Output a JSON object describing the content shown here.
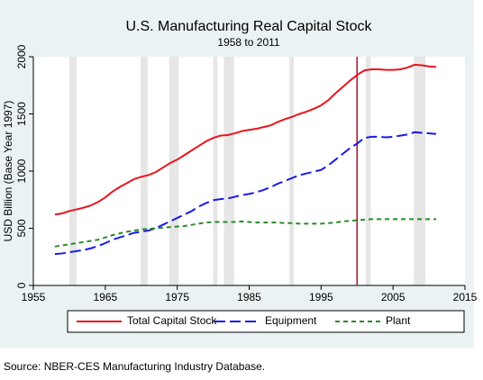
{
  "chart_data": {
    "type": "line",
    "title": "U.S. Manufacturing Real Capital Stock",
    "subtitle": "1958 to 2011",
    "y_label": "USD Billion (Base Year 1997)",
    "source": "Source: NBER-CES Manufacturing Industry Database.",
    "x": [
      1958,
      1959,
      1960,
      1961,
      1962,
      1963,
      1964,
      1965,
      1966,
      1967,
      1968,
      1969,
      1970,
      1971,
      1972,
      1973,
      1974,
      1975,
      1976,
      1977,
      1978,
      1979,
      1980,
      1981,
      1982,
      1983,
      1984,
      1985,
      1986,
      1987,
      1988,
      1989,
      1990,
      1991,
      1992,
      1993,
      1994,
      1995,
      1996,
      1997,
      1998,
      1999,
      2000,
      2001,
      2002,
      2003,
      2004,
      2005,
      2006,
      2007,
      2008,
      2009,
      2010,
      2011
    ],
    "series": [
      {
        "name": "Total Capital Stock",
        "color": "#e8141e",
        "dash": "none",
        "values": [
          620,
          630,
          650,
          665,
          680,
          700,
          730,
          770,
          820,
          860,
          895,
          930,
          950,
          965,
          990,
          1030,
          1070,
          1100,
          1140,
          1180,
          1220,
          1260,
          1290,
          1310,
          1315,
          1330,
          1350,
          1360,
          1370,
          1385,
          1400,
          1430,
          1455,
          1475,
          1500,
          1520,
          1545,
          1575,
          1620,
          1680,
          1735,
          1790,
          1840,
          1880,
          1890,
          1890,
          1885,
          1885,
          1890,
          1905,
          1930,
          1925,
          1915,
          1910
        ]
      },
      {
        "name": "Equipment",
        "color": "#1a1ae6",
        "dash": "12,5",
        "values": [
          275,
          280,
          290,
          300,
          310,
          325,
          345,
          370,
          400,
          420,
          440,
          460,
          470,
          480,
          500,
          530,
          560,
          590,
          620,
          650,
          690,
          720,
          745,
          755,
          760,
          775,
          790,
          800,
          815,
          835,
          860,
          890,
          915,
          940,
          965,
          980,
          995,
          1010,
          1050,
          1100,
          1150,
          1200,
          1240,
          1290,
          1300,
          1300,
          1295,
          1300,
          1310,
          1320,
          1340,
          1335,
          1330,
          1325
        ]
      },
      {
        "name": "Plant",
        "color": "#2a8a2a",
        "dash": "5,4",
        "values": [
          340,
          350,
          360,
          370,
          380,
          390,
          400,
          420,
          440,
          455,
          470,
          480,
          490,
          495,
          500,
          505,
          510,
          515,
          520,
          530,
          540,
          550,
          555,
          555,
          555,
          555,
          560,
          555,
          550,
          550,
          550,
          550,
          545,
          545,
          540,
          540,
          540,
          540,
          545,
          550,
          560,
          565,
          570,
          575,
          580,
          580,
          580,
          580,
          580,
          580,
          580,
          580,
          580,
          580
        ]
      }
    ],
    "shaded_periods": [
      [
        1960,
        1961
      ],
      [
        1969.9,
        1970.9
      ],
      [
        1973.9,
        1975.2
      ],
      [
        1980,
        1980.6
      ],
      [
        1981.5,
        1982.9
      ],
      [
        1990.6,
        1991.2
      ],
      [
        2001.2,
        2001.9
      ],
      [
        2007.9,
        2009.5
      ]
    ],
    "shade_color": "#e6e6e6",
    "vline": 2000,
    "vline_color": "#b0102a",
    "xlim": [
      1955,
      2015
    ],
    "xticks": [
      1955,
      1965,
      1975,
      1985,
      1995,
      2005,
      2015
    ],
    "ylim": [
      0,
      2000
    ],
    "yticks": [
      0,
      500,
      1000,
      1500,
      2000
    ],
    "legend": "bottom"
  }
}
